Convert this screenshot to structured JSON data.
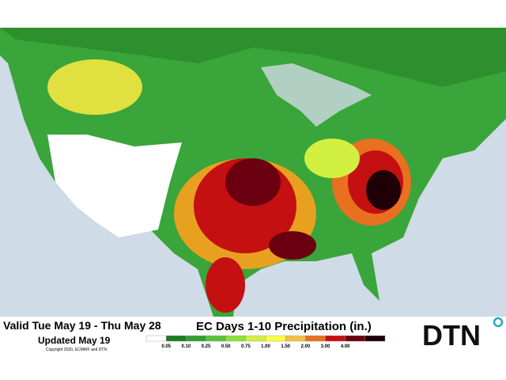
{
  "header": {
    "valid": "Valid Tue May 19 - Thu May 28",
    "updated": "Updated May 19",
    "copyright": "Copyright 2020, ECMWF and DTN",
    "title": "EC Days 1-10 Precipitation (in.)",
    "logo": "DTN"
  },
  "legend": {
    "labels": [
      "0.05",
      "0.10",
      "0.25",
      "0.50",
      "0.75",
      "1.00",
      "1.50",
      "2.00",
      "3.00",
      "4.00"
    ],
    "colors": [
      "#ffffff",
      "#1f7a1f",
      "#2fa02f",
      "#5cc03c",
      "#8ee03c",
      "#d2f040",
      "#ffff40",
      "#f4c040",
      "#e87020",
      "#c41010",
      "#6a0010",
      "#1e0006"
    ]
  }
}
